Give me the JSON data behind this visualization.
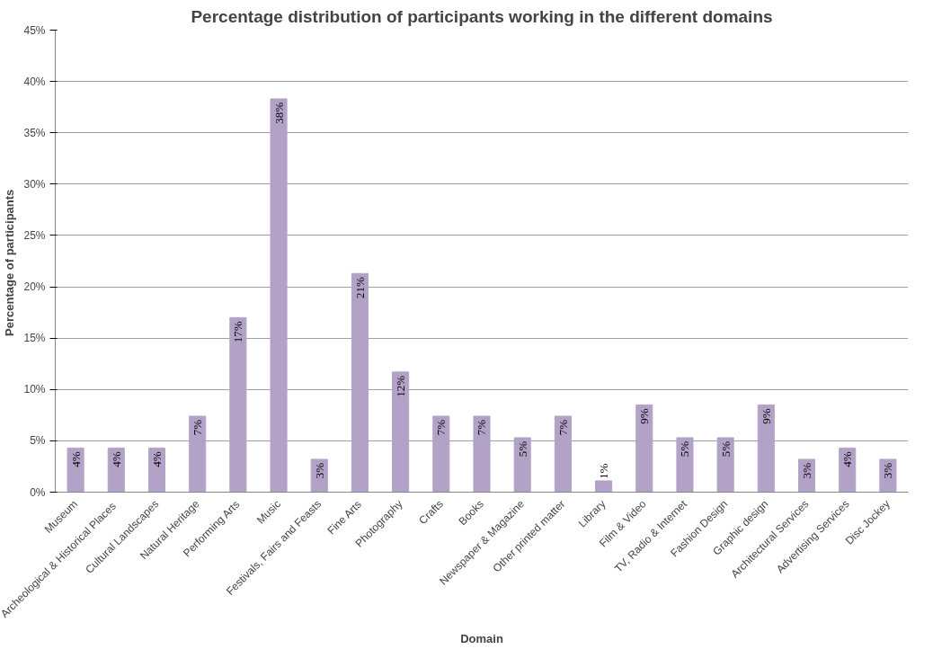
{
  "chart_data": {
    "type": "bar",
    "title": "Percentage distribution of participants working in the different domains",
    "xlabel": "Domain",
    "ylabel": "Percentage  of participants",
    "categories": [
      "Museum",
      "Archeological & Historical  Places",
      "Cultural Landscapes",
      "Natural Heritage",
      "Performing Arts",
      "Music",
      "Festivals, Fairs and Feasts",
      "Fine Arts",
      "Photography",
      "Crafts",
      "Books",
      "Newspaper & Magazine",
      "Other printed matter",
      "Library",
      "Film & Video",
      "TV, Radio & Internet",
      "Fashion Design",
      "Graphic design",
      "Architectural Services",
      "Advertising Services",
      "Disc Jockey"
    ],
    "values": [
      4.3,
      4.3,
      4.3,
      7.4,
      17.0,
      38.3,
      3.2,
      21.3,
      11.7,
      7.4,
      7.4,
      5.3,
      7.4,
      1.1,
      8.5,
      5.3,
      5.3,
      8.5,
      3.2,
      4.3,
      3.2
    ],
    "value_labels": [
      "4%",
      "4%",
      "4%",
      "7%",
      "17%",
      "38%",
      "3%",
      "21%",
      "12%",
      "7%",
      "7%",
      "5%",
      "7%",
      "1%",
      "9%",
      "5%",
      "5%",
      "9%",
      "3%",
      "4%",
      "3%"
    ],
    "color": "#b3a2c7",
    "ylim": [
      0,
      45
    ],
    "yticks": [
      {
        "value": 0,
        "label": "0%"
      },
      {
        "value": 5,
        "label": "5%"
      },
      {
        "value": 10,
        "label": "10%"
      },
      {
        "value": 15,
        "label": "15%"
      },
      {
        "value": 20,
        "label": "20%"
      },
      {
        "value": 25,
        "label": "25%"
      },
      {
        "value": 30,
        "label": "30%"
      },
      {
        "value": 35,
        "label": "35%"
      },
      {
        "value": 40,
        "label": "40%"
      },
      {
        "value": 45,
        "label": "45%"
      }
    ],
    "grid": "y"
  }
}
